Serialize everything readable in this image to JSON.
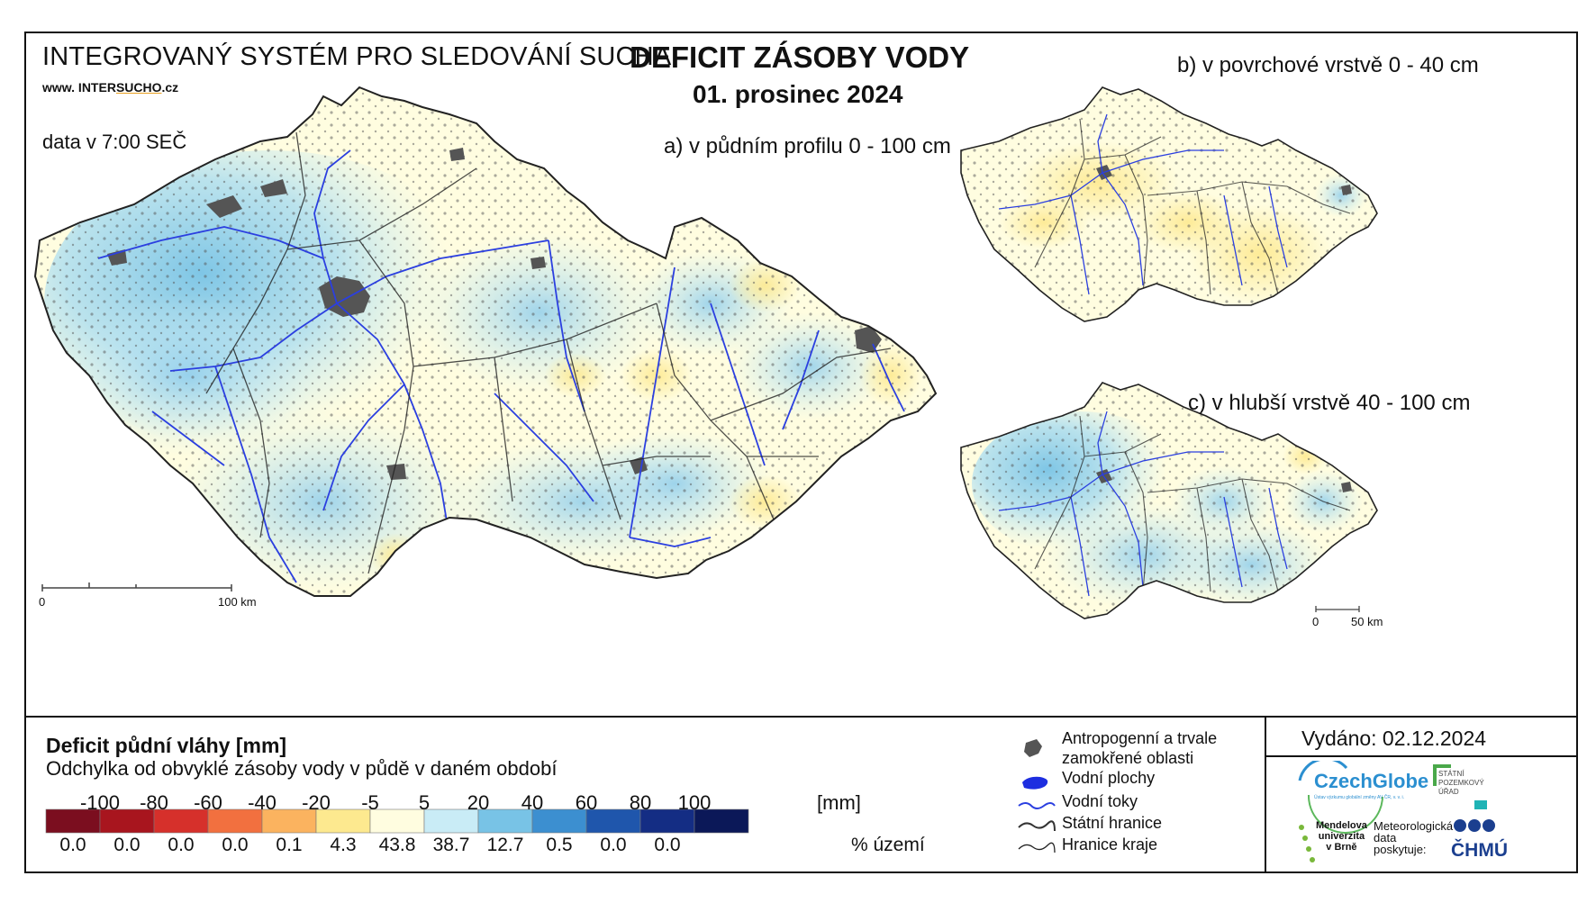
{
  "header": {
    "system_title": "INTEGROVANÝ SYSTÉM PRO SLEDOVÁNÍ SUCHA",
    "website_prefix": "www. INTER",
    "website_brand": "SUCHO",
    "website_suffix": ".cz",
    "data_time": "data v 7:00 SEČ",
    "title": "DEFICIT ZÁSOBY VODY",
    "date": "01. prosinec 2024"
  },
  "maps": {
    "a": {
      "label": "a) v půdním profilu 0 - 100 cm",
      "scale_start": "0",
      "scale_end": "100 km"
    },
    "b": {
      "label": "b) v povrchové vrstvě 0 - 40 cm"
    },
    "c": {
      "label": "c) v hlubší vrstvě 40 - 100 cm",
      "scale_start": "0",
      "scale_end": "50 km"
    }
  },
  "legend": {
    "title": "Deficit půdní vláhy  [mm]",
    "subtitle": "Odchylka od obvyklé zásoby vody v půdě v daném období",
    "thresholds": [
      "-100",
      "-80",
      "-60",
      "-40",
      "-20",
      "-5",
      "5",
      "20",
      "40",
      "60",
      "80",
      "100"
    ],
    "unit": "[mm]",
    "colors": [
      "#7b0e1f",
      "#a8151e",
      "#d6302b",
      "#f2703f",
      "#fbb35f",
      "#fde98f",
      "#fffde0",
      "#c9ecf6",
      "#78c3e6",
      "#3c8fd0",
      "#1f56ac",
      "#142d84",
      "#0b1858"
    ],
    "percent": [
      "0.0",
      "0.0",
      "0.0",
      "0.0",
      "0.1",
      "4.3",
      "43.8",
      "38.7",
      "12.7",
      "0.5",
      "0.0",
      "0.0"
    ],
    "percent_unit": "% území"
  },
  "symbols": {
    "urban": "Antropogenní a trvale zamokřené oblasti",
    "urban_line1": "Antropogenní a trvale",
    "urban_line2": "zamokřené oblasti",
    "water_bodies": "Vodní plochy",
    "rivers": "Vodní toky",
    "state_border": "Státní hranice",
    "region_border": "Hranice kraje"
  },
  "footer": {
    "issued": "Vydáno: 02.12.2024",
    "logo_czechglobe": "CzechGlobe",
    "logo_czechglobe_sub": "Ústav výzkumu globální změny AV ČR, v. v. i.",
    "logo_spu_1": "STÁTNÍ",
    "logo_spu_2": "POZEMKOVÝ",
    "logo_spu_3": "ÚŘAD",
    "logo_mendel_1": "Mendelova",
    "logo_mendel_2": "univerzita",
    "logo_mendel_3": "v Brně",
    "meteo_1": "Meteorologická",
    "meteo_2": "data",
    "meteo_3": "poskytuje:",
    "logo_chmu": "ČHMÚ"
  }
}
